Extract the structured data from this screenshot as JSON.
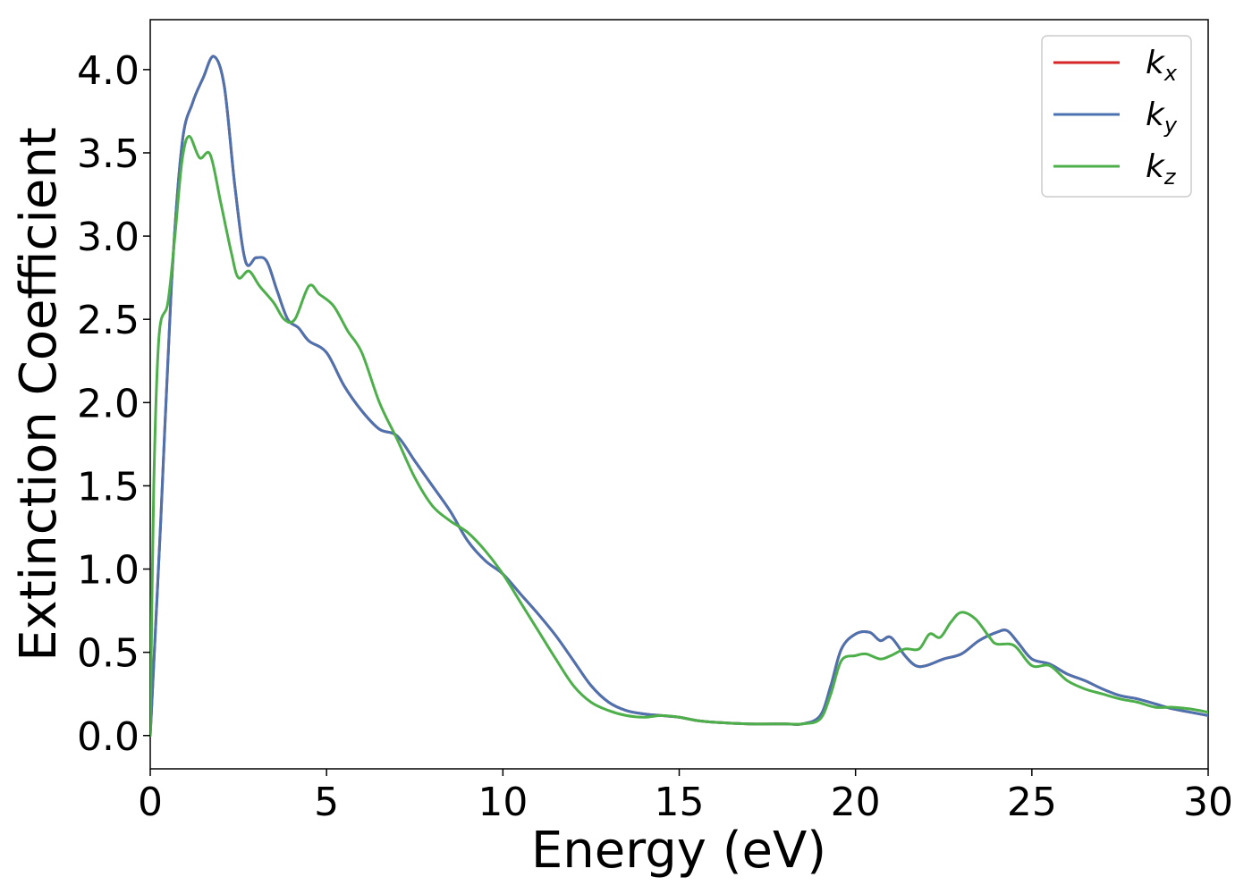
{
  "chart_data": {
    "type": "line",
    "title": "",
    "xlabel": "Energy (eV)",
    "ylabel": "Extinction Coefficient",
    "xlim": [
      0,
      30
    ],
    "ylim": [
      -0.2,
      4.3
    ],
    "xticks": [
      0,
      5,
      10,
      15,
      20,
      25,
      30
    ],
    "xtick_labels": [
      "0",
      "5",
      "10",
      "15",
      "20",
      "25",
      "30"
    ],
    "yticks": [
      0.0,
      0.5,
      1.0,
      1.5,
      2.0,
      2.5,
      3.0,
      3.5,
      4.0
    ],
    "ytick_labels": [
      "0.0",
      "0.5",
      "1.0",
      "1.5",
      "2.0",
      "2.5",
      "3.0",
      "3.5",
      "4.0"
    ],
    "grid": false,
    "legend_position": "top-right",
    "series": [
      {
        "name": "k_x",
        "base": "k",
        "sub": "x",
        "color": "#d62728",
        "points": [
          [
            0,
            0.0
          ],
          [
            0.3,
            1.3
          ],
          [
            0.6,
            2.7
          ],
          [
            0.9,
            3.55
          ],
          [
            1.2,
            3.8
          ],
          [
            1.5,
            3.95
          ],
          [
            1.8,
            4.08
          ],
          [
            2.1,
            3.9
          ],
          [
            2.4,
            3.3
          ],
          [
            2.7,
            2.85
          ],
          [
            3.0,
            2.87
          ],
          [
            3.3,
            2.85
          ],
          [
            3.6,
            2.67
          ],
          [
            3.9,
            2.5
          ],
          [
            4.2,
            2.45
          ],
          [
            4.5,
            2.37
          ],
          [
            5.0,
            2.3
          ],
          [
            5.5,
            2.1
          ],
          [
            6.0,
            1.95
          ],
          [
            6.5,
            1.84
          ],
          [
            7.0,
            1.8
          ],
          [
            7.5,
            1.65
          ],
          [
            8.0,
            1.5
          ],
          [
            8.5,
            1.35
          ],
          [
            9.0,
            1.17
          ],
          [
            9.5,
            1.05
          ],
          [
            10.0,
            0.97
          ],
          [
            10.5,
            0.85
          ],
          [
            11.0,
            0.73
          ],
          [
            11.5,
            0.6
          ],
          [
            12.0,
            0.45
          ],
          [
            12.5,
            0.3
          ],
          [
            13.0,
            0.2
          ],
          [
            13.5,
            0.15
          ],
          [
            14.0,
            0.13
          ],
          [
            14.5,
            0.12
          ],
          [
            15.0,
            0.11
          ],
          [
            15.5,
            0.09
          ],
          [
            16.0,
            0.08
          ],
          [
            17.0,
            0.07
          ],
          [
            18.0,
            0.07
          ],
          [
            18.5,
            0.07
          ],
          [
            19.0,
            0.12
          ],
          [
            19.3,
            0.3
          ],
          [
            19.6,
            0.52
          ],
          [
            20.0,
            0.61
          ],
          [
            20.4,
            0.62
          ],
          [
            20.7,
            0.57
          ],
          [
            21.0,
            0.59
          ],
          [
            21.4,
            0.48
          ],
          [
            21.7,
            0.42
          ],
          [
            22.0,
            0.42
          ],
          [
            22.5,
            0.46
          ],
          [
            23.0,
            0.49
          ],
          [
            23.5,
            0.57
          ],
          [
            24.0,
            0.62
          ],
          [
            24.3,
            0.63
          ],
          [
            24.6,
            0.56
          ],
          [
            25.0,
            0.46
          ],
          [
            25.5,
            0.43
          ],
          [
            26.0,
            0.37
          ],
          [
            26.5,
            0.33
          ],
          [
            27.0,
            0.28
          ],
          [
            27.5,
            0.24
          ],
          [
            28.0,
            0.22
          ],
          [
            28.5,
            0.19
          ],
          [
            29.0,
            0.16
          ],
          [
            29.5,
            0.14
          ],
          [
            30.0,
            0.12
          ]
        ]
      },
      {
        "name": "k_y",
        "base": "k",
        "sub": "y",
        "color": "#4c72b0",
        "points": [
          [
            0,
            0.0
          ],
          [
            0.3,
            1.3
          ],
          [
            0.6,
            2.7
          ],
          [
            0.9,
            3.55
          ],
          [
            1.2,
            3.8
          ],
          [
            1.5,
            3.95
          ],
          [
            1.8,
            4.08
          ],
          [
            2.1,
            3.9
          ],
          [
            2.4,
            3.3
          ],
          [
            2.7,
            2.85
          ],
          [
            3.0,
            2.87
          ],
          [
            3.3,
            2.85
          ],
          [
            3.6,
            2.67
          ],
          [
            3.9,
            2.5
          ],
          [
            4.2,
            2.45
          ],
          [
            4.5,
            2.37
          ],
          [
            5.0,
            2.3
          ],
          [
            5.5,
            2.1
          ],
          [
            6.0,
            1.95
          ],
          [
            6.5,
            1.84
          ],
          [
            7.0,
            1.8
          ],
          [
            7.5,
            1.65
          ],
          [
            8.0,
            1.5
          ],
          [
            8.5,
            1.35
          ],
          [
            9.0,
            1.17
          ],
          [
            9.5,
            1.05
          ],
          [
            10.0,
            0.97
          ],
          [
            10.5,
            0.85
          ],
          [
            11.0,
            0.73
          ],
          [
            11.5,
            0.6
          ],
          [
            12.0,
            0.45
          ],
          [
            12.5,
            0.3
          ],
          [
            13.0,
            0.2
          ],
          [
            13.5,
            0.15
          ],
          [
            14.0,
            0.13
          ],
          [
            14.5,
            0.12
          ],
          [
            15.0,
            0.11
          ],
          [
            15.5,
            0.09
          ],
          [
            16.0,
            0.08
          ],
          [
            17.0,
            0.07
          ],
          [
            18.0,
            0.07
          ],
          [
            18.5,
            0.07
          ],
          [
            19.0,
            0.12
          ],
          [
            19.3,
            0.3
          ],
          [
            19.6,
            0.52
          ],
          [
            20.0,
            0.61
          ],
          [
            20.4,
            0.62
          ],
          [
            20.7,
            0.57
          ],
          [
            21.0,
            0.59
          ],
          [
            21.4,
            0.48
          ],
          [
            21.7,
            0.42
          ],
          [
            22.0,
            0.42
          ],
          [
            22.5,
            0.46
          ],
          [
            23.0,
            0.49
          ],
          [
            23.5,
            0.57
          ],
          [
            24.0,
            0.62
          ],
          [
            24.3,
            0.63
          ],
          [
            24.6,
            0.56
          ],
          [
            25.0,
            0.46
          ],
          [
            25.5,
            0.43
          ],
          [
            26.0,
            0.37
          ],
          [
            26.5,
            0.33
          ],
          [
            27.0,
            0.28
          ],
          [
            27.5,
            0.24
          ],
          [
            28.0,
            0.22
          ],
          [
            28.5,
            0.19
          ],
          [
            29.0,
            0.16
          ],
          [
            29.5,
            0.14
          ],
          [
            30.0,
            0.12
          ]
        ]
      },
      {
        "name": "k_z",
        "base": "k",
        "sub": "z",
        "color": "#4daf4a",
        "points": [
          [
            0,
            0.0
          ],
          [
            0.1,
            1.5
          ],
          [
            0.25,
            2.4
          ],
          [
            0.5,
            2.6
          ],
          [
            0.7,
            3.0
          ],
          [
            0.9,
            3.45
          ],
          [
            1.1,
            3.6
          ],
          [
            1.4,
            3.47
          ],
          [
            1.7,
            3.49
          ],
          [
            2.0,
            3.2
          ],
          [
            2.3,
            2.9
          ],
          [
            2.5,
            2.75
          ],
          [
            2.8,
            2.79
          ],
          [
            3.1,
            2.7
          ],
          [
            3.5,
            2.6
          ],
          [
            3.8,
            2.5
          ],
          [
            4.1,
            2.5
          ],
          [
            4.5,
            2.7
          ],
          [
            4.8,
            2.65
          ],
          [
            5.2,
            2.58
          ],
          [
            5.6,
            2.43
          ],
          [
            6.0,
            2.3
          ],
          [
            6.5,
            2.0
          ],
          [
            7.0,
            1.78
          ],
          [
            7.5,
            1.55
          ],
          [
            8.0,
            1.38
          ],
          [
            8.5,
            1.29
          ],
          [
            9.0,
            1.22
          ],
          [
            9.5,
            1.11
          ],
          [
            10.0,
            0.97
          ],
          [
            10.5,
            0.8
          ],
          [
            11.0,
            0.63
          ],
          [
            11.5,
            0.46
          ],
          [
            12.0,
            0.3
          ],
          [
            12.5,
            0.2
          ],
          [
            13.0,
            0.15
          ],
          [
            13.5,
            0.12
          ],
          [
            14.0,
            0.11
          ],
          [
            14.5,
            0.12
          ],
          [
            15.0,
            0.11
          ],
          [
            15.5,
            0.09
          ],
          [
            16.0,
            0.08
          ],
          [
            17.0,
            0.07
          ],
          [
            18.0,
            0.07
          ],
          [
            18.5,
            0.07
          ],
          [
            19.0,
            0.1
          ],
          [
            19.3,
            0.25
          ],
          [
            19.6,
            0.45
          ],
          [
            20.0,
            0.48
          ],
          [
            20.3,
            0.49
          ],
          [
            20.7,
            0.46
          ],
          [
            21.0,
            0.48
          ],
          [
            21.4,
            0.52
          ],
          [
            21.8,
            0.52
          ],
          [
            22.1,
            0.61
          ],
          [
            22.4,
            0.59
          ],
          [
            22.7,
            0.68
          ],
          [
            23.0,
            0.74
          ],
          [
            23.4,
            0.7
          ],
          [
            23.8,
            0.59
          ],
          [
            24.0,
            0.55
          ],
          [
            24.5,
            0.54
          ],
          [
            25.0,
            0.42
          ],
          [
            25.5,
            0.42
          ],
          [
            26.0,
            0.33
          ],
          [
            26.5,
            0.28
          ],
          [
            27.0,
            0.25
          ],
          [
            27.5,
            0.22
          ],
          [
            28.0,
            0.2
          ],
          [
            28.5,
            0.17
          ],
          [
            29.0,
            0.17
          ],
          [
            29.5,
            0.16
          ],
          [
            30.0,
            0.14
          ]
        ]
      }
    ]
  }
}
